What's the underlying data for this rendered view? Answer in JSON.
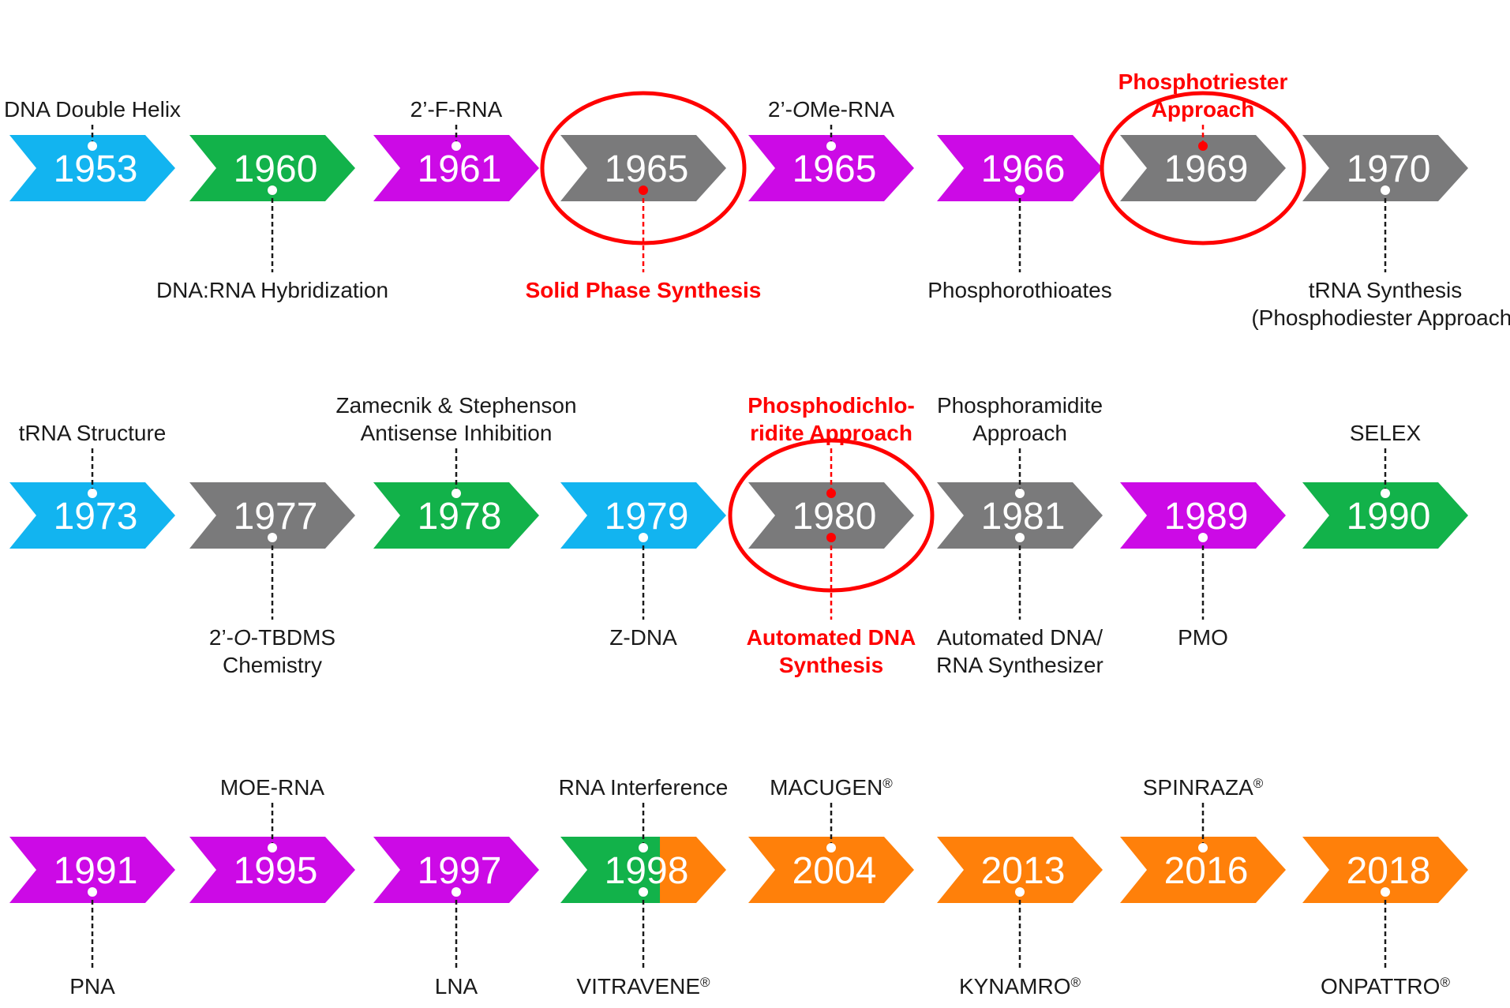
{
  "colors": {
    "blue": "#12b4f0",
    "green": "#12b24a",
    "purple": "#cc0ae6",
    "gray": "#7a7a7b",
    "orange": "#ff800a",
    "highlight": "#ff0000",
    "connector": "#1a1a1a"
  },
  "rows": [
    {
      "milestones": [
        {
          "year": "1953",
          "color": "blue",
          "label_side": "top",
          "label": [
            "DNA Double Helix"
          ]
        },
        {
          "year": "1960",
          "color": "green",
          "label_side": "bottom",
          "label": [
            "DNA:RNA Hybridization"
          ]
        },
        {
          "year": "1961",
          "color": "purple",
          "label_side": "top",
          "label": [
            "2’-F-RNA"
          ]
        },
        {
          "year": "1965",
          "color": "gray",
          "label_side": "bottom",
          "label": [
            "Solid Phase Synthesis"
          ],
          "highlighted": true
        },
        {
          "year": "1965",
          "color": "purple",
          "label_side": "top",
          "label": [
            "2’-OMe-RNA"
          ]
        },
        {
          "year": "1966",
          "color": "purple",
          "label_side": "bottom",
          "label": [
            "Phosphorothioates"
          ]
        },
        {
          "year": "1969",
          "color": "gray",
          "label_side": "top",
          "label": [
            "Phosphotriester",
            "Approach"
          ],
          "highlighted": true
        },
        {
          "year": "1970",
          "color": "gray",
          "label_side": "bottom",
          "label": [
            "tRNA Synthesis",
            "(Phosphodiester Approach)"
          ]
        }
      ]
    },
    {
      "milestones": [
        {
          "year": "1973",
          "color": "blue",
          "label_side": "top",
          "label": [
            "tRNA Structure"
          ]
        },
        {
          "year": "1977",
          "color": "gray",
          "label_side": "bottom",
          "label": [
            "2’-O-TBDMS",
            "Chemistry"
          ]
        },
        {
          "year": "1978",
          "color": "green",
          "label_side": "top",
          "label": [
            "Zamecnik & Stephenson",
            "Antisense Inhibition"
          ]
        },
        {
          "year": "1979",
          "color": "blue",
          "label_side": "bottom",
          "label": [
            "Z-DNA"
          ]
        },
        {
          "year": "1980",
          "color": "gray",
          "highlighted": true,
          "label_top": [
            "Phosphodichlo-",
            "ridite Approach"
          ],
          "label_bottom": [
            "Automated DNA",
            "Synthesis"
          ]
        },
        {
          "year": "1981",
          "color": "gray",
          "label_top": [
            "Phosphoramidite",
            "Approach"
          ],
          "label_bottom": [
            "Automated DNA/",
            "RNA Synthesizer"
          ]
        },
        {
          "year": "1989",
          "color": "purple",
          "label_side": "bottom",
          "label": [
            "PMO"
          ]
        },
        {
          "year": "1990",
          "color": "green",
          "label_side": "top",
          "label": [
            "SELEX"
          ]
        }
      ]
    },
    {
      "milestones": [
        {
          "year": "1991",
          "color": "purple",
          "label_side": "bottom",
          "label": [
            "PNA"
          ]
        },
        {
          "year": "1995",
          "color": "purple",
          "label_side": "top",
          "label": [
            "MOE-RNA"
          ]
        },
        {
          "year": "1997",
          "color": "purple",
          "label_side": "bottom",
          "label": [
            "LNA"
          ]
        },
        {
          "year": "1998",
          "color": "green",
          "color2": "orange",
          "label_top": [
            "RNA Interference"
          ],
          "label_bottom": [
            "VITRAVENE®"
          ]
        },
        {
          "year": "2004",
          "color": "orange",
          "label_side": "top",
          "label": [
            "MACUGEN®"
          ]
        },
        {
          "year": "2013",
          "color": "orange",
          "label_side": "bottom",
          "label": [
            "KYNAMRO®"
          ]
        },
        {
          "year": "2016",
          "color": "orange",
          "label_side": "top",
          "label": [
            "SPINRAZA®"
          ]
        },
        {
          "year": "2018",
          "color": "orange",
          "label_side": "bottom",
          "label": [
            "ONPATTRO®"
          ]
        }
      ]
    }
  ]
}
